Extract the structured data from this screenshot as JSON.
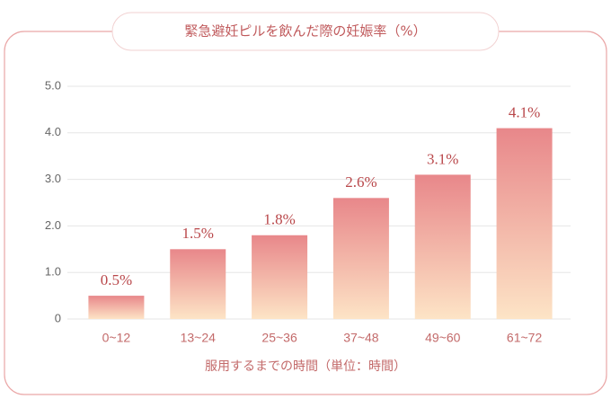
{
  "chart_data": {
    "type": "bar",
    "title": "緊急避妊ピルを飲んだ際の妊娠率（%）",
    "x_label": "服用するまでの時間（単位：時間）",
    "categories": [
      "0~12",
      "13~24",
      "25~36",
      "37~48",
      "49~60",
      "61~72"
    ],
    "values": [
      0.5,
      1.5,
      1.8,
      2.6,
      3.1,
      4.1
    ],
    "value_labels": [
      "0.5%",
      "1.5%",
      "1.8%",
      "2.6%",
      "3.1%",
      "4.1%"
    ],
    "color_top": "#e8878a",
    "color_bottom": "#fde4c6",
    "ylim": [
      0,
      5
    ],
    "yticks": [
      0,
      {
        "value": 1,
        "label": "1.0"
      },
      {
        "value": 2,
        "label": "2.0"
      },
      {
        "value": 3,
        "label": "3.0"
      },
      {
        "value": 4,
        "label": "4.0"
      },
      {
        "value": 5,
        "label": "5.0"
      }
    ],
    "grid": true
  }
}
